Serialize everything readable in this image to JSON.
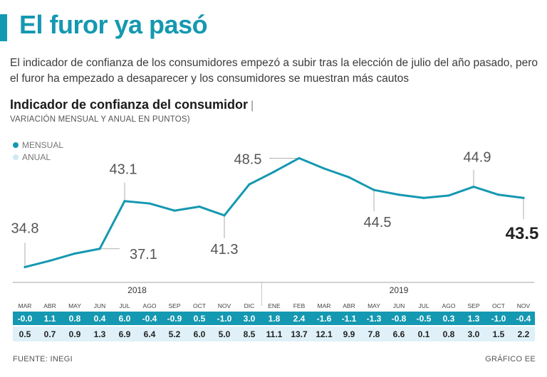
{
  "header": {
    "title": "El furor ya pasó",
    "subtitle": "El indicador de confianza de los consumidores empezó a subir tras la elección de julio del año pasado, pero el furor ha empezado a desaparecer y los consumidores se muestran más cautos"
  },
  "footer": {
    "source": "FUENTE: INEGI",
    "credit": "GRÁFICO EE"
  },
  "colors": {
    "accent": "#1598b1",
    "annual": "#cfe9f4",
    "monthly_row_bg": "#1598b1",
    "annual_row_bg": "#dff0f8"
  },
  "chart_data": {
    "type": "line",
    "title": "Indicador de confianza del consumidor",
    "title_separator": "|",
    "subtitle": "VARIACIÓN MENSUAL Y ANUAL EN PUNTOS)",
    "legend": [
      "MENSUAL",
      "ANUAL"
    ],
    "categories": [
      "MAR",
      "ABR",
      "MAY",
      "JUN",
      "JUL",
      "AGO",
      "SEP",
      "OCT",
      "NOV",
      "DIC",
      "ENE",
      "FEB",
      "MAR",
      "ABR",
      "MAY",
      "JUN",
      "JUL",
      "AGO",
      "SEP",
      "OCT",
      "NOV"
    ],
    "years": [
      {
        "label": "2018",
        "start": 0,
        "end": 9
      },
      {
        "label": "2019",
        "start": 10,
        "end": 20
      }
    ],
    "series": [
      {
        "name": "Indicador",
        "values": [
          34.8,
          35.6,
          36.5,
          37.1,
          43.1,
          42.8,
          41.9,
          42.4,
          41.3,
          45.2,
          46.8,
          48.5,
          47.2,
          46.1,
          44.5,
          43.9,
          43.5,
          43.8,
          44.9,
          43.9,
          43.5
        ]
      }
    ],
    "point_labels": [
      {
        "index": 0,
        "text": "34.8"
      },
      {
        "index": 3,
        "text": "37.1"
      },
      {
        "index": 4,
        "text": "43.1"
      },
      {
        "index": 8,
        "text": "41.3"
      },
      {
        "index": 11,
        "text": "48.5"
      },
      {
        "index": 14,
        "text": "44.5"
      },
      {
        "index": 18,
        "text": "44.9"
      },
      {
        "index": 20,
        "text": "43.5"
      }
    ],
    "ylim": [
      33.5,
      50.5
    ],
    "mensual": [
      "-0.0",
      "1.1",
      "0.8",
      "0.4",
      "6.0",
      "-0.4",
      "-0.9",
      "0.5",
      "-1.0",
      "3.0",
      "1.8",
      "2.4",
      "-1.6",
      "-1.1",
      "-1.3",
      "-0.8",
      "-0.5",
      "0.3",
      "1.3",
      "-1.0",
      "-0.4"
    ],
    "anual": [
      "0.5",
      "0.7",
      "0.9",
      "1.3",
      "6.9",
      "6.4",
      "5.2",
      "6.0",
      "5.0",
      "8.5",
      "11.1",
      "13.7",
      "12.1",
      "9.9",
      "7.8",
      "6.6",
      "0.1",
      "0.8",
      "3.0",
      "1.5",
      "2.2"
    ]
  }
}
